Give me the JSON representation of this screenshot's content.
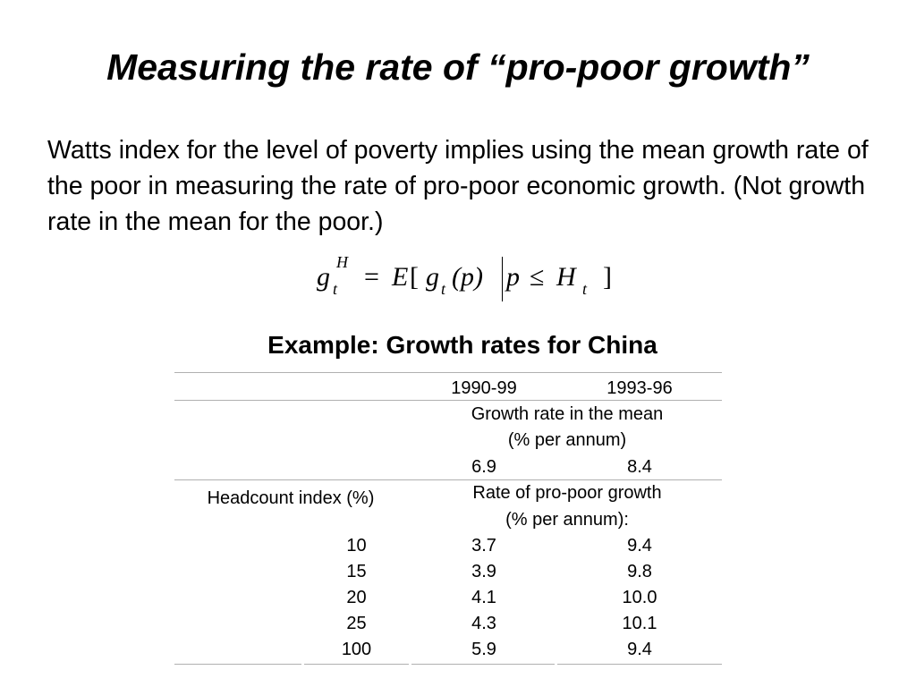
{
  "slide": {
    "title": "Measuring the rate of “pro-poor growth”",
    "body": "Watts index for the level of poverty implies using the mean growth rate of the poor in measuring the rate of pro-poor economic growth. (Not growth rate in the mean for the poor.)"
  },
  "formula": {
    "lhs_symbol": "g",
    "lhs_superscript": "H",
    "lhs_subscript": "t",
    "equals": "=",
    "expectation": "E",
    "open_bracket": "[",
    "inner_symbol": "g",
    "inner_subscript": "t",
    "argument": "(p)",
    "condition_var": "p",
    "leq": "≤",
    "condition_symbol": "H",
    "condition_subscript": "t",
    "close_bracket": "]"
  },
  "table": {
    "title": "Example: Growth rates for China",
    "periods": [
      "1990-99",
      "1993-96"
    ],
    "mean_label_line1": "Growth rate in the mean",
    "mean_label_line2": "(% per annum)",
    "mean_values": [
      "6.9",
      "8.4"
    ],
    "headcount_label": "Headcount index  (%)",
    "propoor_label_line1": "Rate of pro-poor growth",
    "propoor_label_line2": "(% per annum):",
    "rows": [
      {
        "headcount": "10",
        "v1": "3.7",
        "v2": "9.4"
      },
      {
        "headcount": "15",
        "v1": "3.9",
        "v2": "9.8"
      },
      {
        "headcount": "20",
        "v1": "4.1",
        "v2": "10.0"
      },
      {
        "headcount": "25",
        "v1": "4.3",
        "v2": "10.1"
      },
      {
        "headcount": "100",
        "v1": "5.9",
        "v2": "9.4"
      }
    ]
  }
}
